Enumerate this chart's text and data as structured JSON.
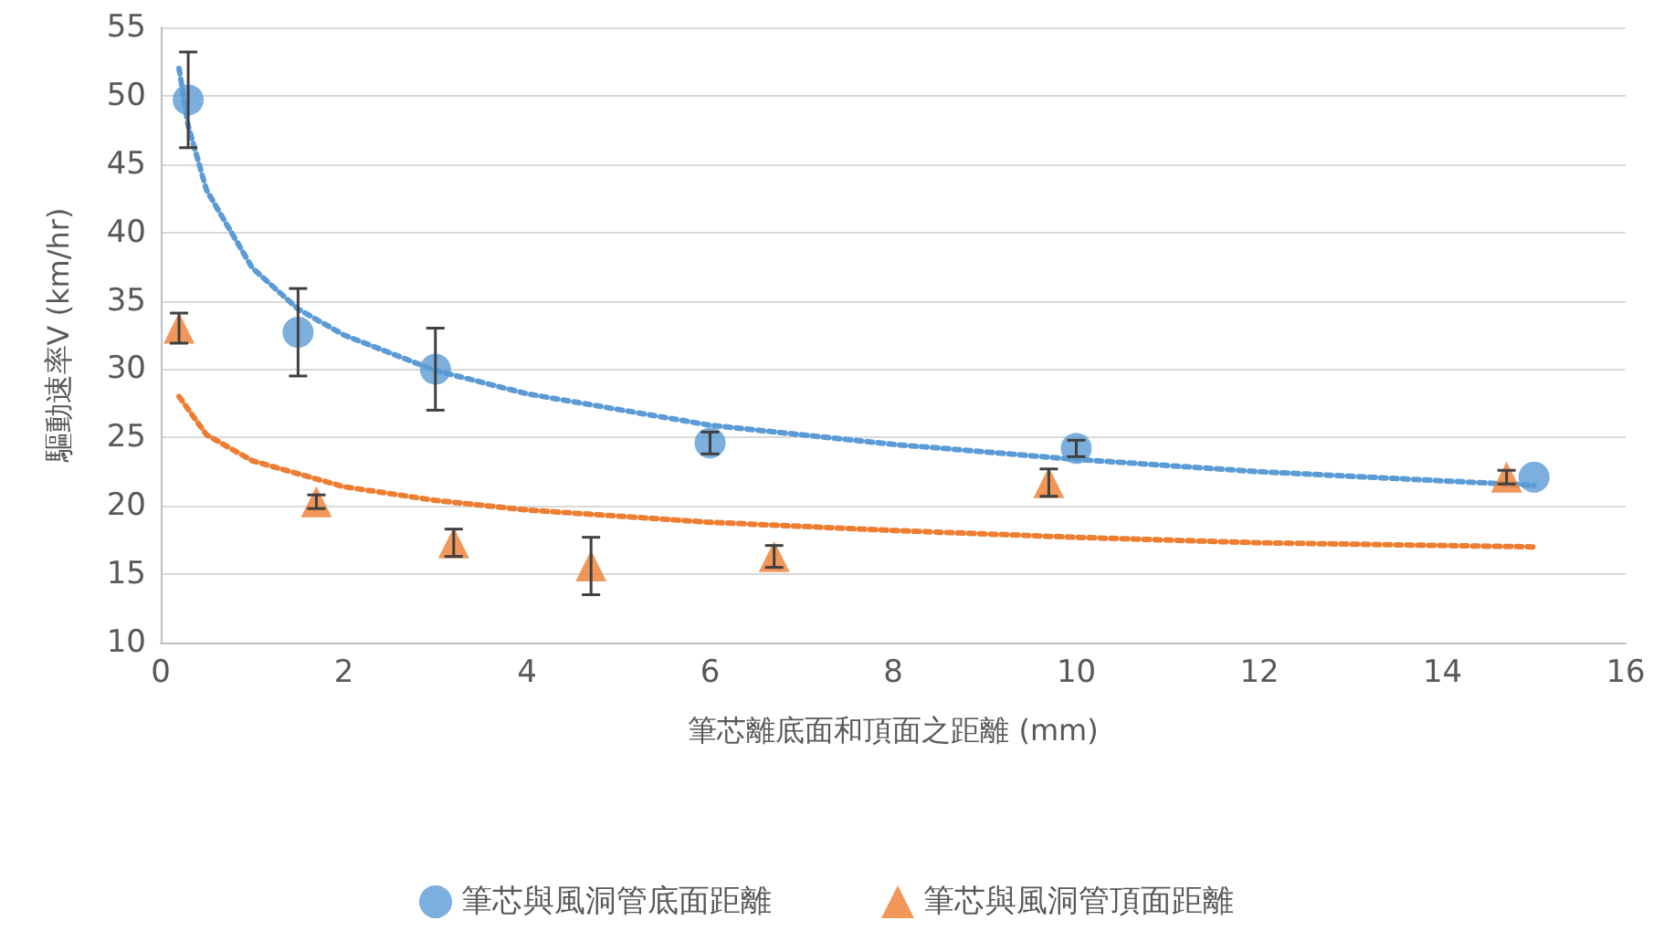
{
  "chart_data": {
    "type": "scatter",
    "xlabel": "筆芯離底面和頂面之距離 (mm)",
    "ylabel": "驅動速率V (km/hr)",
    "xlim": [
      0,
      16
    ],
    "xticks": [
      0,
      2,
      4,
      6,
      8,
      10,
      12,
      14,
      16
    ],
    "ylim": [
      10,
      55
    ],
    "yticks": [
      10,
      15,
      20,
      25,
      30,
      35,
      40,
      45,
      50,
      55
    ],
    "grid": "y",
    "legend": "bottom",
    "series": [
      {
        "name": "筆芯與風洞管底面距離",
        "marker": "circle",
        "color": "#5b9bd5",
        "x": [
          0.3,
          1.5,
          3,
          6,
          10,
          15
        ],
        "values": [
          49.7,
          32.7,
          30,
          24.6,
          24.2,
          22.1
        ],
        "errors": [
          3.5,
          3.2,
          3,
          0.8,
          0.6,
          null
        ]
      },
      {
        "name": "筆芯與風洞管頂面距離",
        "marker": "triangle",
        "color": "#ed7d31",
        "x": [
          0.2,
          1.7,
          3.2,
          4.7,
          6.7,
          9.7,
          14.7
        ],
        "values": [
          33,
          20.3,
          17.3,
          15.6,
          16.3,
          21.7,
          22.1
        ],
        "errors": [
          1.1,
          0.5,
          1,
          2.1,
          0.8,
          1,
          0.5
        ]
      },
      {
        "type": "line",
        "marker": "none",
        "line_style": "dotted",
        "color": "#5b9bd5",
        "x": [
          0.2,
          0.3,
          0.5,
          1,
          1.5,
          2,
          3,
          4,
          6,
          8,
          10,
          12,
          15
        ],
        "values": [
          52,
          47.8,
          43.1,
          37.4,
          34.4,
          32.5,
          29.9,
          28.2,
          25.9,
          24.5,
          23.4,
          22.5,
          21.5
        ]
      },
      {
        "type": "line",
        "marker": "none",
        "line_style": "dotted",
        "color": "#ed7d31",
        "x": [
          0.2,
          0.5,
          1,
          2,
          3,
          4,
          6,
          8,
          10,
          12,
          15
        ],
        "values": [
          28,
          25.2,
          23.3,
          21.4,
          20.4,
          19.7,
          18.8,
          18.2,
          17.7,
          17.3,
          17
        ]
      }
    ]
  }
}
